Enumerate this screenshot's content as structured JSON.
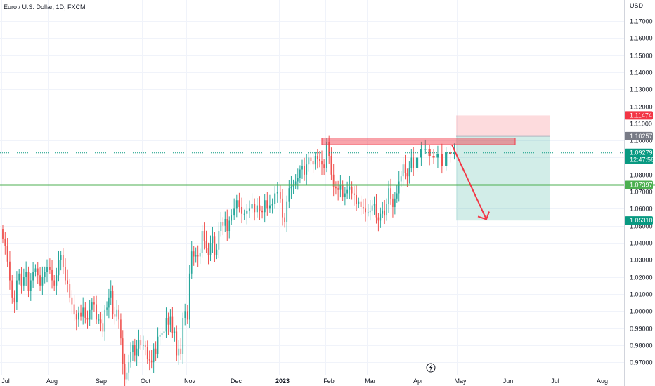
{
  "chart_data": {
    "type": "candlestick",
    "title": "Euro / U.S. Dollar, 1D, FXCM",
    "currency_label": "USD",
    "x_tick_labels": [
      "Jul",
      "Aug",
      "Sep",
      "Oct",
      "Nov",
      "Dec",
      "2023",
      "Feb",
      "Mar",
      "Apr",
      "May",
      "Jun",
      "Jul",
      "Aug"
    ],
    "bold_tick": "2023",
    "y_tick_labels": [
      "1.17000",
      "1.16000",
      "1.15000",
      "1.14000",
      "1.13000",
      "1.12000",
      "1.11000",
      "1.10000",
      "1.09000",
      "1.08000",
      "1.07000",
      "1.06000",
      "1.05000",
      "1.04000",
      "1.03000",
      "1.02000",
      "1.01000",
      "1.00000",
      "0.99000",
      "0.98000",
      "0.97000"
    ],
    "ylim": [
      0.9645,
      1.1815
    ],
    "grid": true,
    "closes_by_month": {
      "Jul": [
        1.0425,
        1.038,
        1.029,
        1.018,
        1.008,
        1.005,
        1.018,
        1.022,
        1.015,
        1.02,
        1.023,
        1.012,
        1.018,
        1.023,
        1.025,
        1.021,
        1.015,
        1.02,
        1.023,
        1.026
      ],
      "Aug": [
        1.024,
        1.018,
        1.015,
        1.021,
        1.03,
        1.033,
        1.026,
        1.018,
        1.016,
        1.008,
        1.004,
        0.998,
        0.995,
        0.999,
        0.997,
        1.002,
        0.996,
        0.995,
        1.001,
        1.005,
        1.004,
        0.995
      ],
      "Sep": [
        0.995,
        0.993,
        0.988,
        1.001,
        1.002,
        1.008,
        1.012,
        0.998,
        0.997,
        1.001,
        0.995,
        0.984,
        0.969,
        0.96,
        0.964,
        0.97,
        0.976,
        0.98,
        0.974,
        0.978,
        0.983,
        0.98
      ],
      "Oct": [
        0.98,
        0.979,
        0.972,
        0.971,
        0.97,
        0.978,
        0.975,
        0.985,
        0.986,
        0.987,
        0.988,
        0.996,
        0.992,
        0.997,
        0.987,
        0.988,
        0.974,
        0.978,
        0.975,
        0.996,
        1.0
      ],
      "Nov": [
        0.995,
        1.022,
        1.035,
        1.032,
        1.033,
        1.032,
        1.034,
        1.047,
        1.041,
        1.037,
        1.033,
        1.04,
        1.044,
        1.033,
        1.036,
        1.047,
        1.052,
        1.05,
        1.054,
        1.047,
        1.053,
        1.056
      ],
      "Dec": [
        1.06,
        1.065,
        1.061,
        1.057,
        1.057,
        1.059,
        1.06,
        1.063,
        1.058,
        1.062,
        1.059,
        1.058,
        1.065,
        1.06,
        1.062,
        1.063,
        1.069,
        1.07
      ],
      "Jan": [
        1.066,
        1.055,
        1.052,
        1.064,
        1.072,
        1.073,
        1.074,
        1.076,
        1.078,
        1.083,
        1.085,
        1.08,
        1.086,
        1.09,
        1.088,
        1.086,
        1.091,
        1.089,
        1.088,
        1.086,
        1.084
      ],
      "Feb": [
        1.099,
        1.091,
        1.08,
        1.073,
        1.072,
        1.071,
        1.074,
        1.067,
        1.069,
        1.071,
        1.073,
        1.069,
        1.068,
        1.063,
        1.064,
        1.061,
        1.06,
        1.058
      ],
      "Mar": [
        1.058,
        1.059,
        1.062,
        1.063,
        1.055,
        1.053,
        1.057,
        1.059,
        1.056,
        1.063,
        1.072,
        1.066,
        1.061,
        1.066,
        1.069,
        1.076,
        1.079,
        1.086,
        1.081,
        1.079,
        1.084,
        1.09,
        1.084
      ],
      "Apr": [
        1.09,
        1.095,
        1.095,
        1.091,
        1.09,
        1.092,
        1.085,
        1.093,
        1.092,
        1.0928
      ]
    },
    "zones": {
      "resistance": [
        1.0975,
        1.1015
      ],
      "stop_zone": [
        1.1025,
        1.1147
      ],
      "target_zone": [
        1.0531,
        1.1025
      ]
    },
    "horizontal_line": 1.07397,
    "current_price": 1.09279,
    "price_tags": [
      {
        "label": "1.11474",
        "color": "#f23645"
      },
      {
        "label": "1.10257",
        "color": "#787b86"
      },
      {
        "label": "1.09279",
        "sub": "12:47:56",
        "color": "#089981"
      },
      {
        "label": "1.07397",
        "color": "#4caf50"
      },
      {
        "label": "1.05310",
        "color": "#089981"
      }
    ],
    "colors": {
      "up": "#26a69a",
      "down": "#ef5350",
      "line": "#4caf50",
      "arrow": "#f23645"
    }
  }
}
